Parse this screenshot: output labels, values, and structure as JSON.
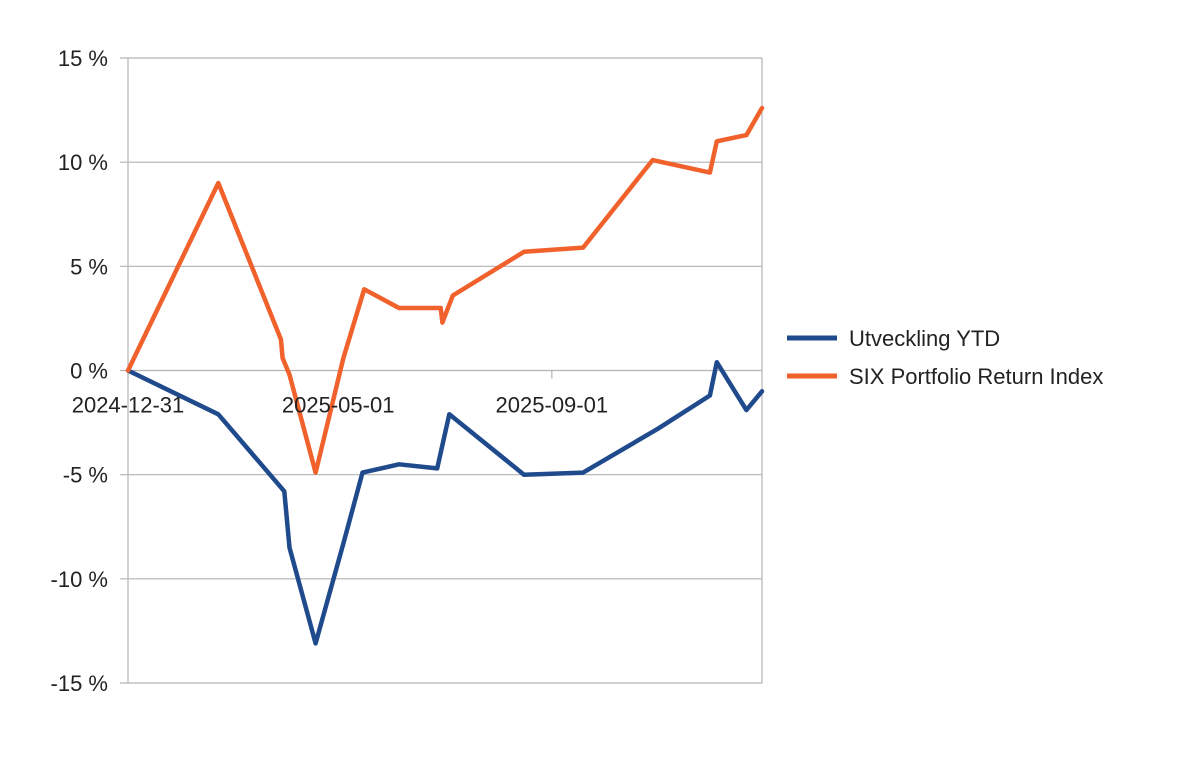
{
  "chart_data": {
    "type": "line",
    "title": "",
    "xlabel": "",
    "ylabel": "",
    "x_tick_labels": [
      {
        "label": "2024-12-31",
        "day": 0
      },
      {
        "label": "2025-05-01",
        "day": 121
      },
      {
        "label": "2025-09-01",
        "day": 244
      }
    ],
    "xlim": [
      0,
      365
    ],
    "ylim": [
      -15,
      15
    ],
    "y_ticks": [
      15,
      10,
      5,
      0,
      -5,
      -10,
      -15
    ],
    "y_tick_labels": [
      "15 %",
      "10 %",
      "5 %",
      "0 %",
      "-5 %",
      "-10 %",
      "-15 %"
    ],
    "grid": true,
    "legend_position": "right",
    "series": [
      {
        "name": "Utveckling YTD",
        "color": "#1f4a8c",
        "points": [
          [
            0,
            0.0
          ],
          [
            52,
            -2.1
          ],
          [
            90,
            -5.8
          ],
          [
            93,
            -8.5
          ],
          [
            108,
            -13.1
          ],
          [
            124,
            -8.3
          ],
          [
            135,
            -4.9
          ],
          [
            156,
            -4.5
          ],
          [
            178,
            -4.7
          ],
          [
            185,
            -2.1
          ],
          [
            228,
            -5.0
          ],
          [
            262,
            -4.9
          ],
          [
            305,
            -2.8
          ],
          [
            335,
            -1.2
          ],
          [
            339,
            0.4
          ],
          [
            356,
            -1.9
          ],
          [
            365,
            -1.0
          ]
        ]
      },
      {
        "name": "SIX Portfolio Return Index",
        "color": "#f0612b",
        "points": [
          [
            0,
            0.0
          ],
          [
            52,
            9.0
          ],
          [
            88,
            1.5
          ],
          [
            89,
            0.6
          ],
          [
            93,
            -0.2
          ],
          [
            108,
            -4.9
          ],
          [
            124,
            0.6
          ],
          [
            136,
            3.9
          ],
          [
            156,
            3.0
          ],
          [
            180,
            3.0
          ],
          [
            181,
            2.3
          ],
          [
            187,
            3.6
          ],
          [
            228,
            5.7
          ],
          [
            262,
            5.9
          ],
          [
            302,
            10.1
          ],
          [
            335,
            9.5
          ],
          [
            339,
            11.0
          ],
          [
            356,
            11.3
          ],
          [
            365,
            12.6
          ]
        ]
      }
    ]
  }
}
